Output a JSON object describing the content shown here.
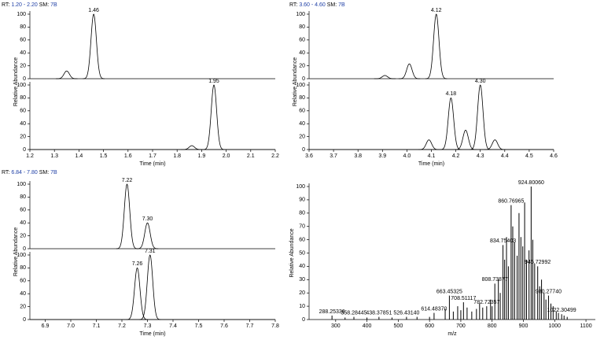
{
  "chart_data": [
    {
      "type": "chromatogram",
      "header": {
        "rt_label": "RT:",
        "rt_range": "1.20 - 2.20",
        "sm_label": "SM:",
        "sm": "7B"
      },
      "x_label": "Time (min)",
      "y_label": "Relative Abundance",
      "xlim": [
        1.2,
        2.2
      ],
      "xticks": [
        1.2,
        1.3,
        1.4,
        1.5,
        1.6,
        1.7,
        1.8,
        1.9,
        {
          "value": 2.0,
          "label": "2.0"
        },
        2.1,
        2.2
      ],
      "traces": [
        {
          "ylim": [
            0,
            100
          ],
          "yticks": [
            0,
            20,
            40,
            60,
            80,
            100
          ],
          "peaks": [
            {
              "rt": 1.35,
              "height": 12
            },
            {
              "rt": 1.46,
              "height": 100,
              "label": "1.46"
            }
          ]
        },
        {
          "ylim": [
            0,
            100
          ],
          "yticks": [
            0,
            20,
            40,
            60,
            80,
            100
          ],
          "peaks": [
            {
              "rt": 1.86,
              "height": 6
            },
            {
              "rt": 1.95,
              "height": 100,
              "label": "1.95"
            }
          ]
        }
      ]
    },
    {
      "type": "chromatogram",
      "header": {
        "rt_label": "RT:",
        "rt_range": "3.60 - 4.60",
        "sm_label": "SM:",
        "sm": "7B"
      },
      "x_label": "Time (min)",
      "y_label": "Relative Abundance",
      "xlim": [
        3.6,
        4.6
      ],
      "xticks": [
        3.6,
        3.7,
        3.8,
        3.9,
        {
          "value": 4.0,
          "label": "4.0"
        },
        4.1,
        4.2,
        4.3,
        4.4,
        4.5,
        4.6
      ],
      "traces": [
        {
          "ylim": [
            0,
            100
          ],
          "yticks": [
            0,
            20,
            40,
            60,
            80,
            100
          ],
          "peaks": [
            {
              "rt": 3.91,
              "height": 5
            },
            {
              "rt": 4.01,
              "height": 23
            },
            {
              "rt": 4.12,
              "height": 100,
              "label": "4.12"
            }
          ]
        },
        {
          "ylim": [
            0,
            100
          ],
          "yticks": [
            0,
            20,
            40,
            60,
            80,
            100
          ],
          "peaks": [
            {
              "rt": 4.09,
              "height": 15
            },
            {
              "rt": 4.18,
              "height": 80,
              "label": "4.18"
            },
            {
              "rt": 4.24,
              "height": 30
            },
            {
              "rt": 4.3,
              "height": 100,
              "label": "4.30"
            },
            {
              "rt": 4.36,
              "height": 15
            }
          ]
        }
      ]
    },
    {
      "type": "chromatogram",
      "header": {
        "rt_label": "RT:",
        "rt_range": "6.84 - 7.80",
        "sm_label": "SM:",
        "sm": "7B"
      },
      "x_label": "Time (min)",
      "y_label": "Relative Abundance",
      "xlim": [
        6.84,
        7.8
      ],
      "xticks": [
        6.9,
        {
          "value": 7.0,
          "label": "7.0"
        },
        7.1,
        7.2,
        7.3,
        7.4,
        7.5,
        7.6,
        7.7,
        7.8
      ],
      "traces": [
        {
          "ylim": [
            0,
            100
          ],
          "yticks": [
            0,
            20,
            40,
            60,
            80,
            100
          ],
          "peaks": [
            {
              "rt": 7.22,
              "height": 100,
              "label": "7.22"
            },
            {
              "rt": 7.3,
              "height": 40,
              "label": "7.30"
            }
          ]
        },
        {
          "ylim": [
            0,
            100
          ],
          "yticks": [
            0,
            20,
            40,
            60,
            80,
            100
          ],
          "peaks": [
            {
              "rt": 7.26,
              "height": 80,
              "label": "7.26"
            },
            {
              "rt": 7.31,
              "height": 100,
              "label": "7.31"
            }
          ]
        }
      ]
    },
    {
      "type": "spectrum",
      "x_label": "m/z",
      "y_label": "Relative Abundance",
      "xlim": [
        215,
        1130
      ],
      "xticks": [
        300,
        400,
        500,
        600,
        700,
        800,
        900,
        1000,
        1100
      ],
      "ylim": [
        0,
        100
      ],
      "yticks": [
        0,
        10,
        20,
        30,
        40,
        50,
        60,
        70,
        80,
        90,
        100
      ],
      "peaks": [
        {
          "mz": 288.25336,
          "intensity": 3,
          "label": "288.25336"
        },
        {
          "mz": 358.28445,
          "intensity": 2,
          "label": "358.28445"
        },
        {
          "mz": 438.37851,
          "intensity": 2,
          "label": "438.37851"
        },
        {
          "mz": 526.4314,
          "intensity": 2,
          "label": "526.43140"
        },
        {
          "mz": 614.4837,
          "intensity": 5,
          "label": "614.48370"
        },
        {
          "mz": 663.45325,
          "intensity": 18,
          "label": "663.45325"
        },
        {
          "mz": 708.51117,
          "intensity": 13,
          "label": "708.51117"
        },
        {
          "mz": 782.72357,
          "intensity": 10,
          "label": "782.72357"
        },
        {
          "mz": 808.73877,
          "intensity": 27,
          "label": "808.73877"
        },
        {
          "mz": 834.75403,
          "intensity": 56,
          "label": "834.75403"
        },
        {
          "mz": 860.76965,
          "intensity": 86,
          "label": "860.76965"
        },
        {
          "mz": 924.8006,
          "intensity": 100,
          "label": "924.80060"
        },
        {
          "mz": 945.72992,
          "intensity": 40,
          "label": "945.72992"
        },
        {
          "mz": 980.2774,
          "intensity": 18,
          "label": "980.27740"
        },
        {
          "mz": 1022.30499,
          "intensity": 4,
          "label": "1022.30499"
        },
        {
          "mz": 330,
          "intensity": 1.5
        },
        {
          "mz": 400,
          "intensity": 1.5
        },
        {
          "mz": 480,
          "intensity": 1.5
        },
        {
          "mz": 560,
          "intensity": 2
        },
        {
          "mz": 600,
          "intensity": 2
        },
        {
          "mz": 650,
          "intensity": 8
        },
        {
          "mz": 676,
          "intensity": 6
        },
        {
          "mz": 690,
          "intensity": 10
        },
        {
          "mz": 700,
          "intensity": 7
        },
        {
          "mz": 720,
          "intensity": 9
        },
        {
          "mz": 735,
          "intensity": 6
        },
        {
          "mz": 750,
          "intensity": 8
        },
        {
          "mz": 760,
          "intensity": 12
        },
        {
          "mz": 770,
          "intensity": 9
        },
        {
          "mz": 795,
          "intensity": 15
        },
        {
          "mz": 800,
          "intensity": 10
        },
        {
          "mz": 820,
          "intensity": 30
        },
        {
          "mz": 826,
          "intensity": 20
        },
        {
          "mz": 840,
          "intensity": 45
        },
        {
          "mz": 846,
          "intensity": 62
        },
        {
          "mz": 852,
          "intensity": 40
        },
        {
          "mz": 866,
          "intensity": 70
        },
        {
          "mz": 872,
          "intensity": 58
        },
        {
          "mz": 880,
          "intensity": 48
        },
        {
          "mz": 886,
          "intensity": 80
        },
        {
          "mz": 892,
          "intensity": 62
        },
        {
          "mz": 898,
          "intensity": 55
        },
        {
          "mz": 904,
          "intensity": 88
        },
        {
          "mz": 910,
          "intensity": 45
        },
        {
          "mz": 918,
          "intensity": 52
        },
        {
          "mz": 930,
          "intensity": 60
        },
        {
          "mz": 936,
          "intensity": 42
        },
        {
          "mz": 952,
          "intensity": 25
        },
        {
          "mz": 958,
          "intensity": 30
        },
        {
          "mz": 966,
          "intensity": 20
        },
        {
          "mz": 972,
          "intensity": 15
        },
        {
          "mz": 988,
          "intensity": 12
        },
        {
          "mz": 995,
          "intensity": 10
        },
        {
          "mz": 1005,
          "intensity": 6
        },
        {
          "mz": 1012,
          "intensity": 5
        },
        {
          "mz": 1030,
          "intensity": 3
        },
        {
          "mz": 1040,
          "intensity": 2
        }
      ]
    }
  ]
}
